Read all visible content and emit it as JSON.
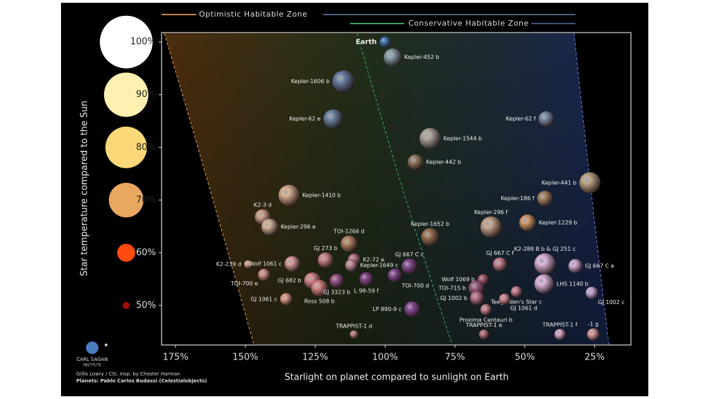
{
  "legend": {
    "optimistic": "Optimistic Habitable Zone",
    "conservative": "Conservative Habitable Zone"
  },
  "credits": {
    "logo": "CARL SAGAN",
    "logo_sub": "INSTITUTE",
    "line1": "Gillis Lowry / CSI, insp. by Chester Harman",
    "line2": "Planets: Pablo Carlos Budassi (Celestialobjects)"
  },
  "chart_data": {
    "type": "scatter",
    "x_label": "Starlight on planet compared to sunlight on Earth",
    "y_label": "Star temperature compared to the Sun",
    "xlim": [
      180,
      12
    ],
    "ylim": [
      42.5,
      101.8
    ],
    "xticks": [
      {
        "value": 175,
        "label": "175%"
      },
      {
        "value": 150,
        "label": "150%"
      },
      {
        "value": 125,
        "label": "125%"
      },
      {
        "value": 100,
        "label": "100%"
      },
      {
        "value": 75,
        "label": "75%"
      },
      {
        "value": 50,
        "label": "50%"
      },
      {
        "value": 25,
        "label": "25%"
      }
    ],
    "yticks": [
      {
        "value": 100,
        "label": "100%"
      },
      {
        "value": 90,
        "label": "90%"
      },
      {
        "value": 80,
        "label": "80%"
      },
      {
        "value": 70,
        "label": "70%"
      },
      {
        "value": 60,
        "label": "60%"
      },
      {
        "value": 50,
        "label": "50%"
      }
    ],
    "star_colors": [
      "#ffffff",
      "#fdf0b0",
      "#fcd878",
      "#e8a860",
      "#ff4a10",
      "#a01008"
    ],
    "labels": [
      "Earth",
      "Kepler-452 b",
      "Kepler-1606 b",
      "Kepler-62 e",
      "Kepler-1544 b",
      "Kepler-442 b",
      "Kepler-62 f",
      "Kepler-441 b",
      "Kepler-186 f",
      "Kepler-1229 b",
      "Kepler-296 f",
      "Kepler-1652 b",
      "Kepler-1410 b",
      "K2-3 d",
      "Kepler-296 e",
      "TOI-1266 d",
      "K2-239 d",
      "TOI-700 e",
      "Wolf 1061 c",
      "GJ 273 b",
      "K2-72 e",
      "Kepler-1649 c",
      "GJ 682 b",
      "Ross 508 b",
      "GJ 3323 b",
      "GJ 1061 c",
      "L 98-59 f",
      "GJ 667 C c",
      "TOI-700 d",
      "LP 890-9 c",
      "TRAPPIST-1 d",
      "Wolf 1069 b",
      "TOI-715 b",
      "GJ 1002 b",
      "GJ 667 C f",
      "K2-288 B b & GJ 251 c",
      "GJ 667 C e",
      "LHS 1140 b",
      "GJ 1002 c",
      "Teegarden's Star c",
      "GJ 1061 d",
      "Proxima Centauri b",
      "TRAPPIST-1 e",
      "TRAPPIST-1 f",
      "-1 g"
    ],
    "x": [
      100,
      97.3,
      114.9,
      118.6,
      83.9,
      89.1,
      42.3,
      26.7,
      42.8,
      49,
      62.1,
      83.9,
      134.4,
      143.8,
      141.3,
      112.9,
      149,
      143.3,
      133.2,
      121.3,
      111.1,
      112.1,
      126,
      123.5,
      117.3,
      135.4,
      106.7,
      91.3,
      96.5,
      90.3,
      111.1,
      64.9,
      67.3,
      67.1,
      58.9,
      42.8,
      31.9,
      43.1,
      26,
      53,
      57.2,
      63.9,
      64.6,
      37.4,
      25.5
    ],
    "y": [
      100,
      97.1,
      92.5,
      85.4,
      81.7,
      77.2,
      85.4,
      73.3,
      70.3,
      65.7,
      64.9,
      63,
      70.9,
      66.8,
      64.9,
      61.7,
      57.8,
      55.8,
      57.9,
      58.6,
      58.7,
      57.6,
      54.7,
      53.3,
      54.7,
      51.2,
      55,
      57.4,
      55.7,
      49.3,
      44.5,
      54.9,
      53.3,
      51.4,
      57.8,
      57.9,
      57.5,
      54.1,
      52.4,
      52.6,
      51.2,
      49.2,
      44.5,
      44.5,
      44.5
    ],
    "radius": [
      1,
      1.6,
      2,
      1.75,
      1.9,
      1.4,
      1.4,
      1.9,
      1.4,
      1.5,
      1.9,
      1.6,
      1.9,
      1.4,
      1.5,
      1.5,
      0.75,
      1.1,
      1.4,
      1.4,
      1.1,
      1.1,
      1.5,
      1.5,
      1.25,
      1.1,
      1.25,
      1.4,
      1.25,
      1.4,
      0.75,
      1,
      1.4,
      1.25,
      1.25,
      1.9,
      1.25,
      1.75,
      1.1,
      1,
      1,
      1,
      0.9,
      1,
      1.1
    ],
    "colors": [
      "#4a7cc0",
      "#8ea4b0",
      "#6c80a8",
      "#7088a8",
      "#b0a8a0",
      "#9a8068",
      "#8090a8",
      "#c0a888",
      "#a88868",
      "#d8a070",
      "#c8a890",
      "#a07858",
      "#d8b090",
      "#d0a890",
      "#d8b8a0",
      "#b88868",
      "#d8a8a0",
      "#d89890",
      "#e0a0a0",
      "#d08890",
      "#c07890",
      "#c890a0",
      "#d88890",
      "#d88888",
      "#a05890",
      "#e0a090",
      "#8a4a90",
      "#8a5098",
      "#8a5098",
      "#9050a0",
      "#c08888",
      "#b06070",
      "#a06088",
      "#c07890",
      "#d08898",
      "#e0b8e0",
      "#d8b0d8",
      "#e0b8e0",
      "#d0b0e0",
      "#d08898",
      "#d89098",
      "#d08898",
      "#c07880",
      "#e0b0d0",
      "#e0a0a0"
    ]
  }
}
